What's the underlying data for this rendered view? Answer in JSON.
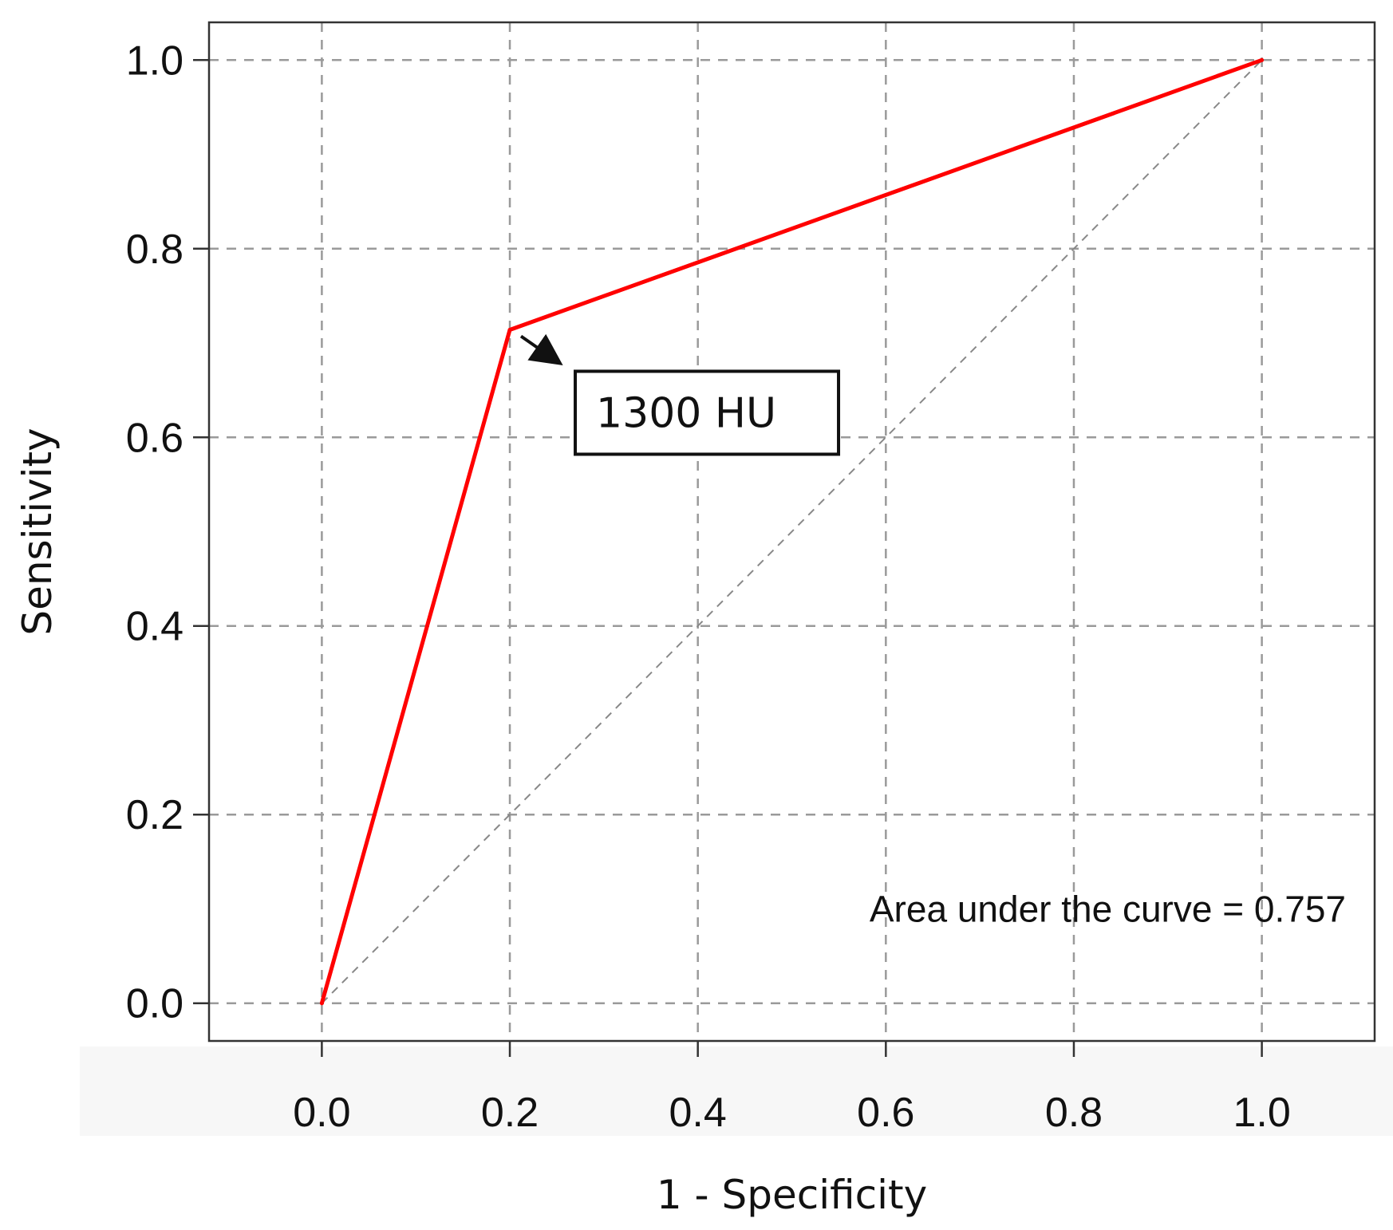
{
  "chart_data": {
    "type": "line",
    "xlabel": "1 - Specificity",
    "ylabel": "Sensitivity",
    "xlim": [
      -0.12,
      1.12
    ],
    "ylim": [
      -0.04,
      1.04
    ],
    "x_ticks": [
      "0.0",
      "0.2",
      "0.4",
      "0.6",
      "0.8",
      "1.0"
    ],
    "y_ticks": [
      "0.0",
      "0.2",
      "0.4",
      "0.6",
      "0.8",
      "1.0"
    ],
    "grid": true,
    "series": [
      {
        "color": "#ff0000",
        "points": [
          {
            "x": 0.0,
            "y": 0.0
          },
          {
            "x": 0.2,
            "y": 0.714
          },
          {
            "x": 1.0,
            "y": 1.0
          }
        ]
      }
    ],
    "reference_line": {
      "from": [
        0,
        0
      ],
      "to": [
        1,
        1
      ],
      "style": "dashed",
      "color": "#888888"
    },
    "annotations": {
      "cutoff_label": "1300 HU",
      "cutoff_point": {
        "x": 0.2,
        "y": 0.714
      },
      "auc_text": "Area under the curve = 0.757"
    }
  }
}
